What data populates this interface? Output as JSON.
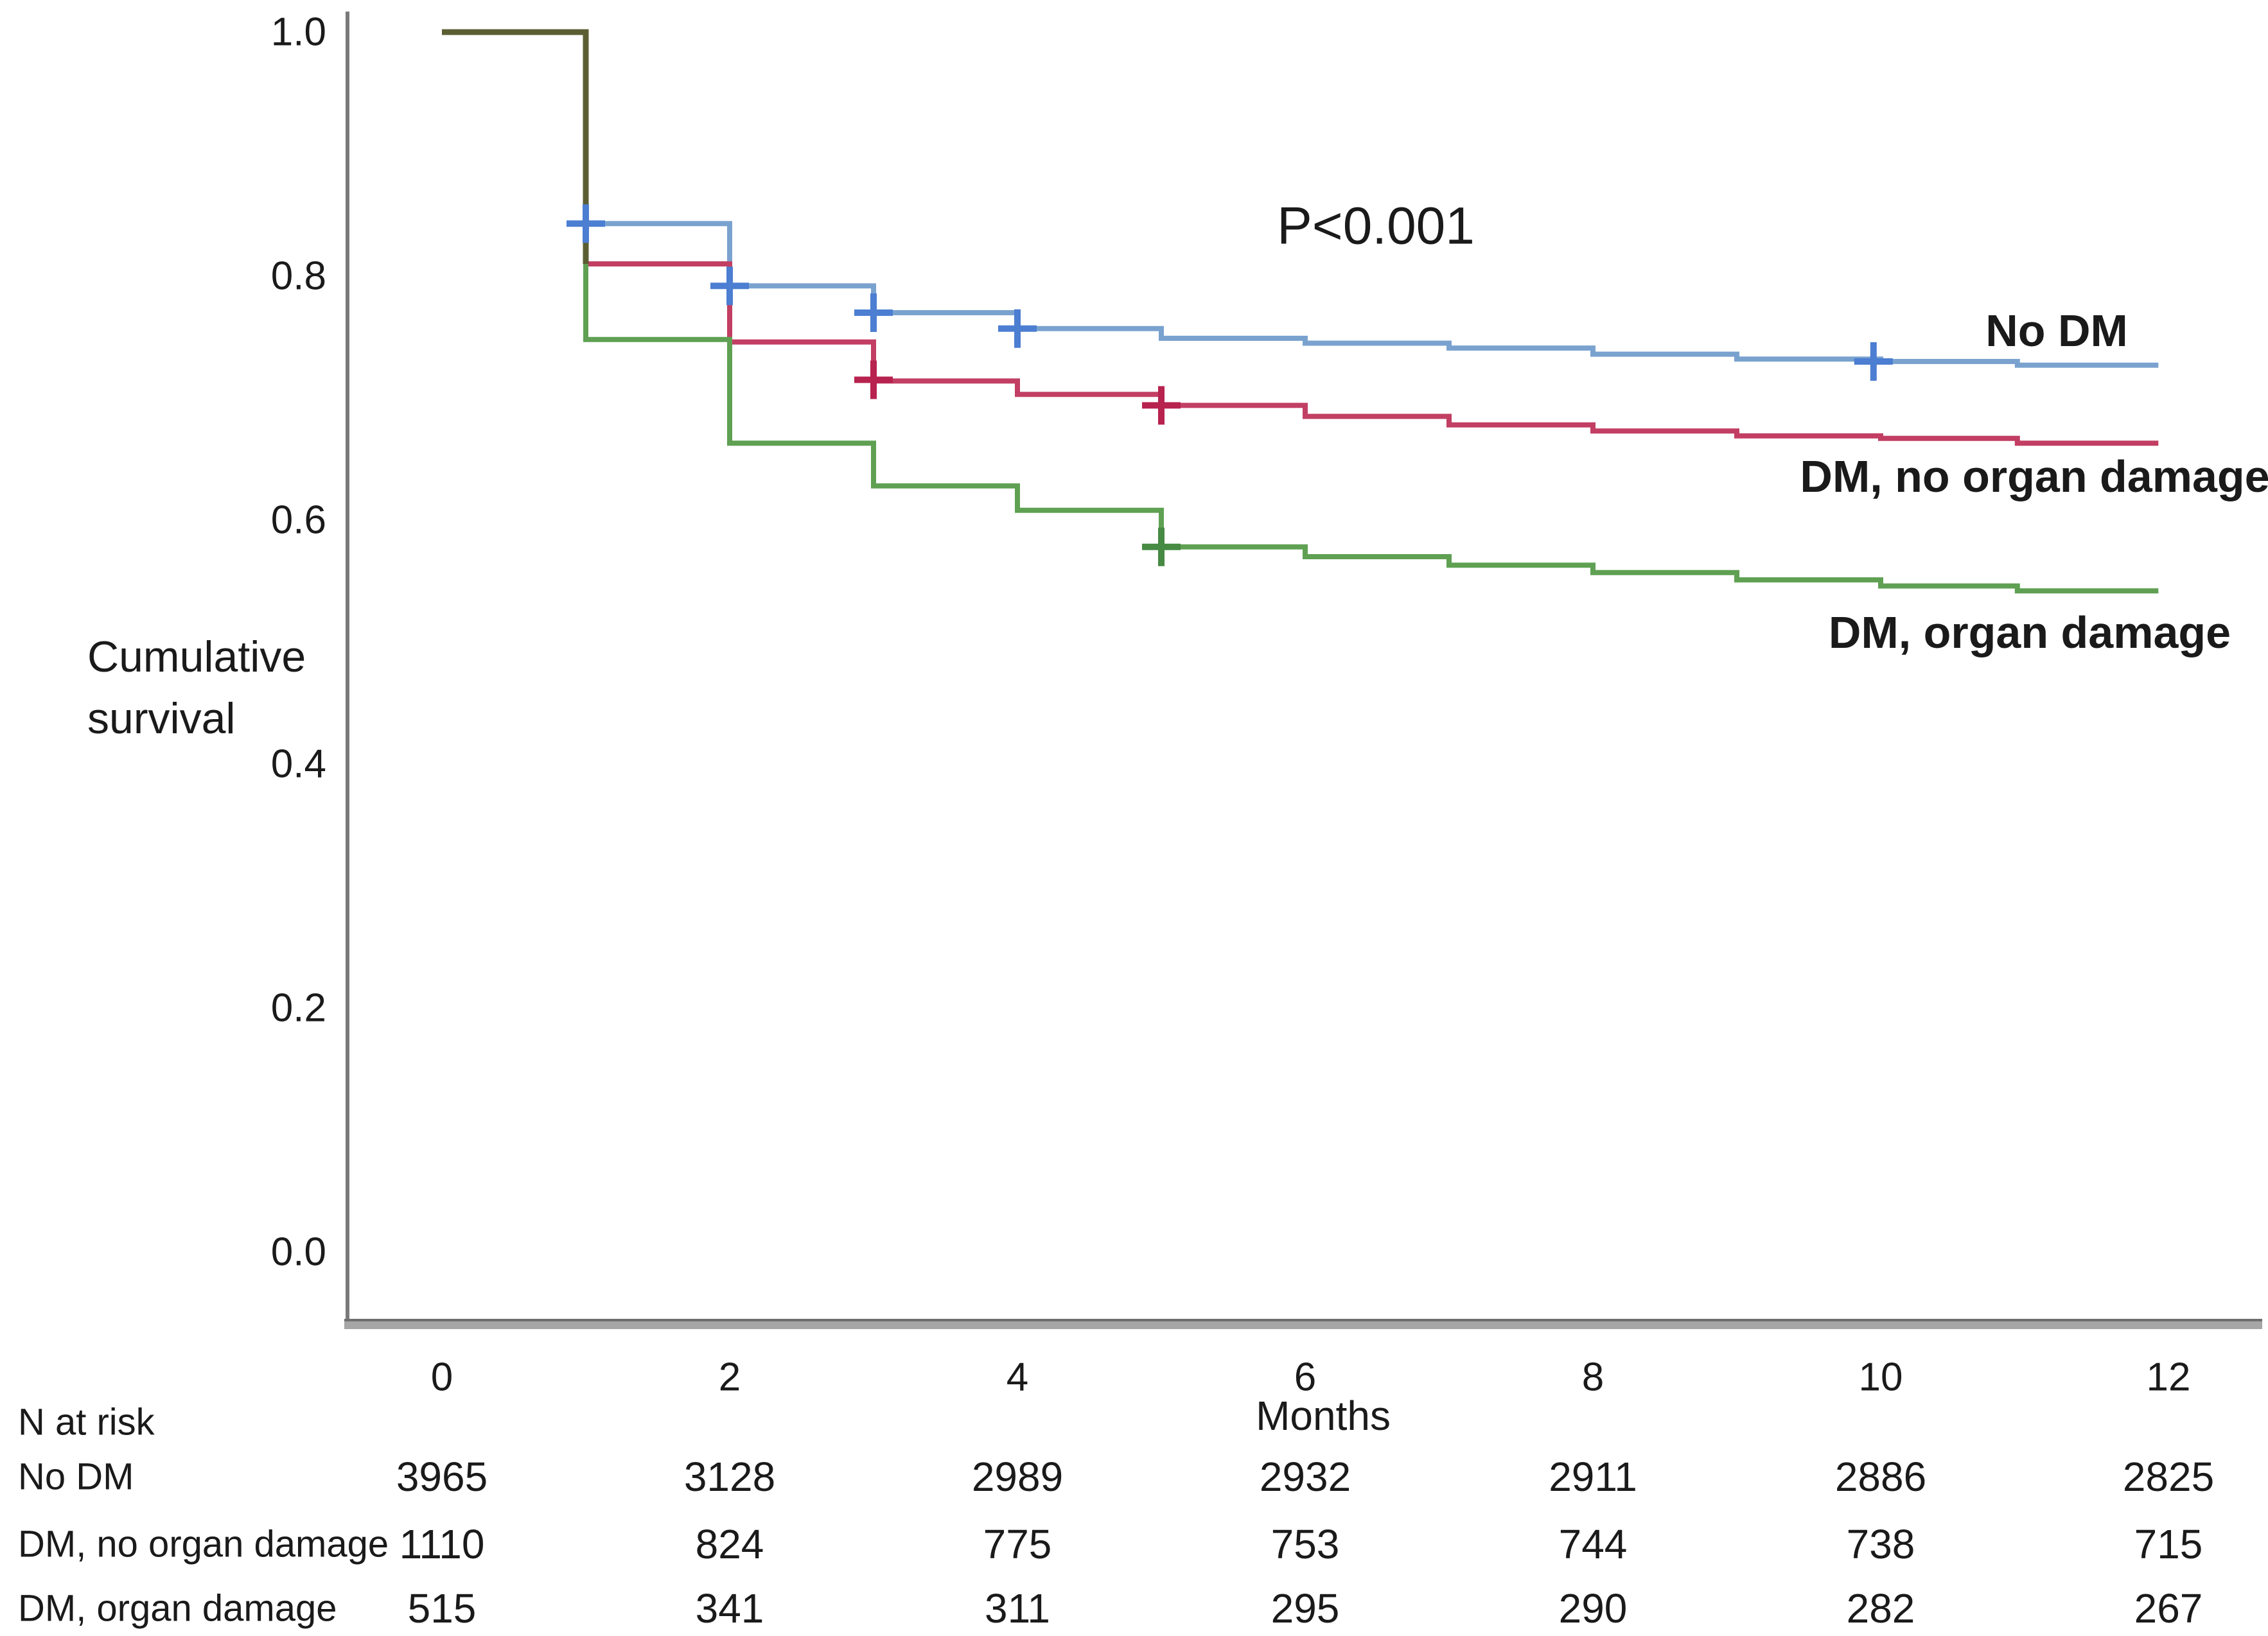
{
  "chart_data": {
    "type": "line",
    "subtype": "kaplan_meier_step",
    "title": "",
    "annotation": "P<0.001",
    "xlabel": "Months",
    "ylabel_line1": "Cumulative",
    "ylabel_line2": "survival",
    "xlim": [
      0,
      12
    ],
    "ylim": [
      0.0,
      1.0
    ],
    "x_ticks": [
      0,
      2,
      4,
      6,
      8,
      10,
      12
    ],
    "y_ticks": [
      1.0,
      0.8,
      0.6,
      0.4,
      0.2,
      0.0
    ],
    "grid": false,
    "legend_position": "labels-at-curve-ends",
    "end_month": 11.93,
    "overlap_segment": {
      "color": "#5B5E32",
      "note": "all three curves overlap at 1.0 from month 0 to 1",
      "drop_to": 0.81
    },
    "series": [
      {
        "name": "no_dm",
        "label": "No DM",
        "color": "#7AA2CF",
        "censor_color": "#4C7ED2",
        "start": [
          0,
          1.0
        ],
        "steps": [
          [
            1,
            0.843
          ],
          [
            2,
            0.792
          ],
          [
            3,
            0.77
          ],
          [
            4,
            0.757
          ],
          [
            5,
            0.749
          ],
          [
            6,
            0.745
          ],
          [
            7,
            0.741
          ],
          [
            8,
            0.736
          ],
          [
            9,
            0.732
          ],
          [
            10,
            0.73
          ],
          [
            10.95,
            0.727
          ]
        ],
        "censors": [
          [
            1,
            0.843
          ],
          [
            2,
            0.792
          ],
          [
            3,
            0.77
          ],
          [
            4,
            0.757
          ],
          [
            9.95,
            0.73
          ]
        ]
      },
      {
        "name": "dm_no_organ_damage",
        "label": "DM, no organ damage",
        "color": "#C23E63",
        "censor_color": "#B7224F",
        "start": [
          0,
          1.0
        ],
        "steps": [
          [
            1,
            0.81
          ],
          [
            2,
            0.746
          ],
          [
            3,
            0.714
          ],
          [
            4,
            0.703
          ],
          [
            5,
            0.694
          ],
          [
            6,
            0.685
          ],
          [
            7,
            0.678
          ],
          [
            8,
            0.673
          ],
          [
            9,
            0.669
          ],
          [
            10,
            0.667
          ],
          [
            10.95,
            0.663
          ]
        ],
        "censors": [
          [
            3,
            0.715
          ],
          [
            5,
            0.694
          ]
        ]
      },
      {
        "name": "dm_organ_damage",
        "label": "DM, organ damage",
        "color": "#5FA053",
        "censor_color": "#468A43",
        "start": [
          0,
          1.0
        ],
        "steps": [
          [
            1,
            0.748
          ],
          [
            2,
            0.663
          ],
          [
            3,
            0.628
          ],
          [
            4,
            0.608
          ],
          [
            5,
            0.578
          ],
          [
            6,
            0.57
          ],
          [
            7,
            0.563
          ],
          [
            8,
            0.557
          ],
          [
            9,
            0.551
          ],
          [
            10,
            0.546
          ],
          [
            10.95,
            0.542
          ]
        ],
        "censors": [
          [
            5,
            0.578
          ]
        ]
      }
    ]
  },
  "risk_table": {
    "title": "N at risk",
    "columns_months": [
      0,
      2,
      4,
      6,
      8,
      10,
      12
    ],
    "rows": [
      {
        "label": "No DM",
        "values": [
          3965,
          3128,
          2989,
          2932,
          2911,
          2886,
          2825
        ]
      },
      {
        "label": "DM, no organ damage",
        "values": [
          1110,
          824,
          775,
          753,
          744,
          738,
          715
        ]
      },
      {
        "label": "DM, organ damage",
        "values": [
          515,
          341,
          311,
          295,
          290,
          282,
          267
        ]
      }
    ]
  },
  "colors": {
    "axis_line": "#7A7A7A",
    "axis_bar": "#A6A6A6",
    "axis_bar_edge": "#6F6F6F",
    "text": "#1A1A1A",
    "background": "#FFFFFF"
  }
}
